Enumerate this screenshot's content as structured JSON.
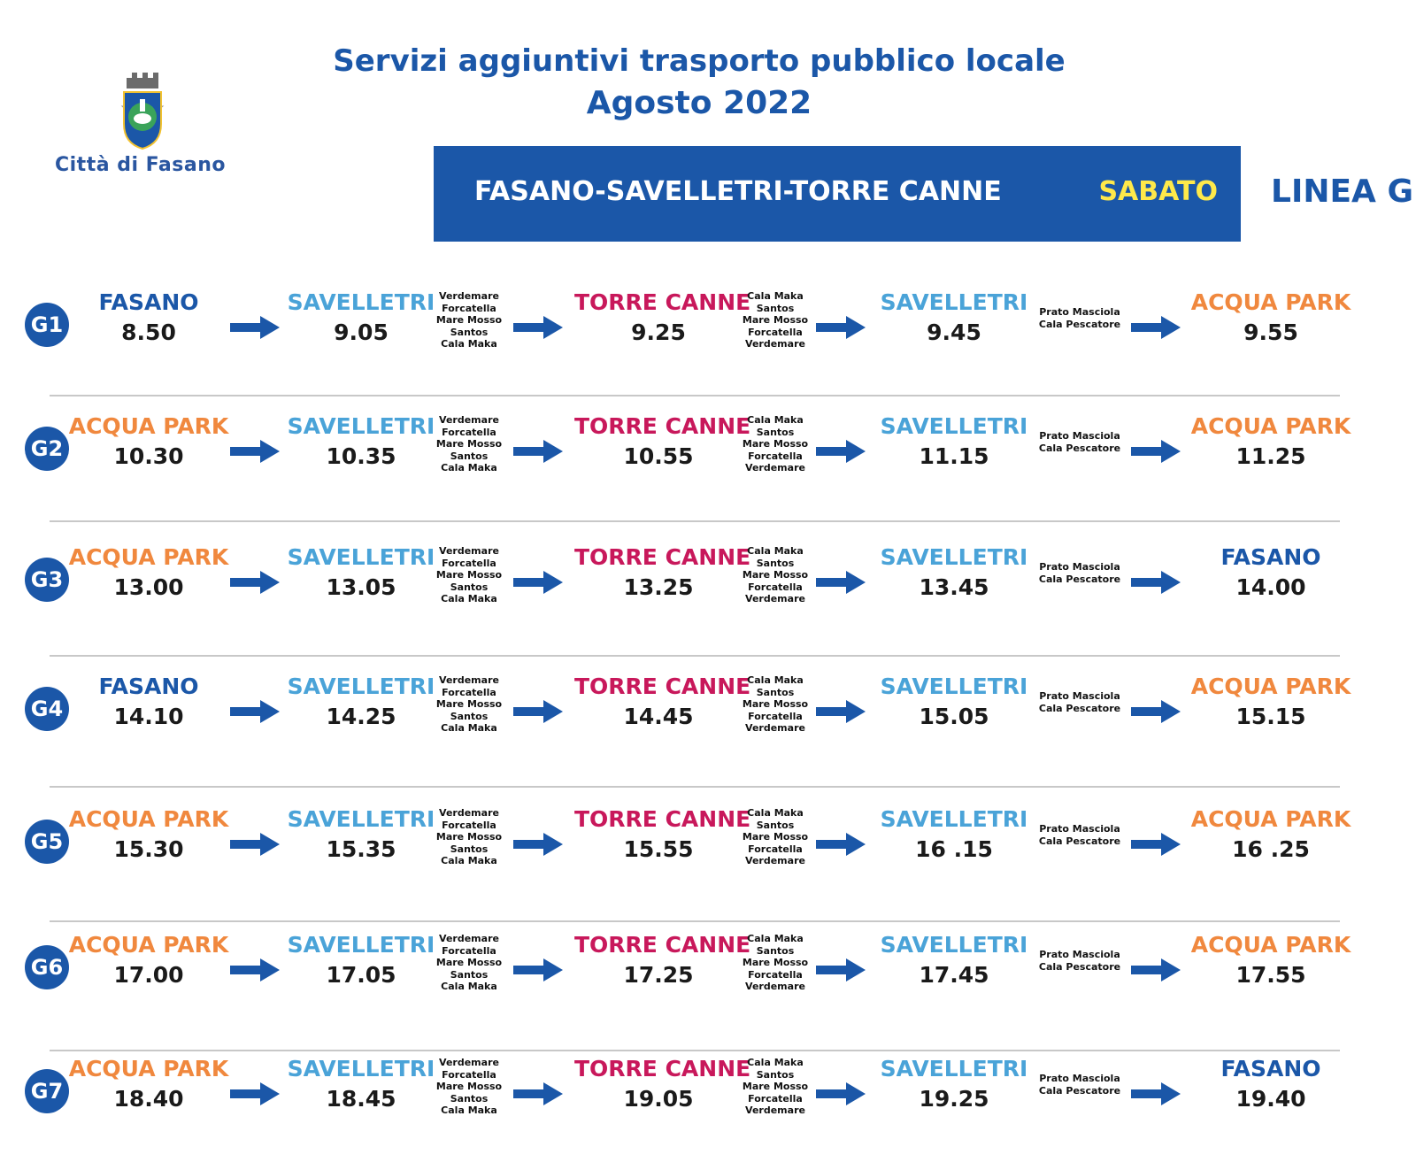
{
  "header": {
    "logo_text": "Città di Fasano",
    "title_line1": "Servizi aggiuntivi trasporto pubblico locale",
    "title_line2": "Agosto 2022",
    "banner_route": "FASANO-SAVELLETRI-TORRE CANNE",
    "banner_day": "SABATO",
    "line_label": "LINEA G"
  },
  "colors": {
    "primary_blue": "#1b57a8",
    "savelletri": "#4aa3d8",
    "torre_canne": "#c8185b",
    "acqua_park": "#f0883e",
    "day_yellow": "#ffe94a"
  },
  "trips": [
    {
      "code": "G1",
      "stops": [
        {
          "name": "FASANO",
          "time": "8.50",
          "type": "fasano"
        },
        {
          "name": "SAVELLETRI",
          "time": "9.05",
          "type": "savelletri"
        },
        {
          "name": "TORRE CANNE",
          "time": "9.25",
          "type": "torre"
        },
        {
          "name": "SAVELLETRI",
          "time": "9.45",
          "type": "savelletri"
        },
        {
          "name": "ACQUA PARK",
          "time": "9.55",
          "type": "acqua"
        }
      ],
      "via": [
        "Verdemare\nForcatella\nMare Mosso\nSantos\nCala Maka",
        "Cala Maka\nSantos\nMare Mosso\nForcatella\nVerdemare",
        "Prato Masciola\nCala Pescatore"
      ]
    },
    {
      "code": "G2",
      "stops": [
        {
          "name": "ACQUA PARK",
          "time": "10.30",
          "type": "acqua"
        },
        {
          "name": "SAVELLETRI",
          "time": "10.35",
          "type": "savelletri"
        },
        {
          "name": "TORRE CANNE",
          "time": "10.55",
          "type": "torre"
        },
        {
          "name": "SAVELLETRI",
          "time": "11.15",
          "type": "savelletri"
        },
        {
          "name": "ACQUA PARK",
          "time": "11.25",
          "type": "acqua"
        }
      ],
      "via": [
        "Verdemare\nForcatella\nMare Mosso\nSantos\nCala Maka",
        "Cala Maka\nSantos\nMare Mosso\nForcatella\nVerdemare",
        "Prato Masciola\nCala Pescatore"
      ]
    },
    {
      "code": "G3",
      "stops": [
        {
          "name": "ACQUA PARK",
          "time": "13.00",
          "type": "acqua"
        },
        {
          "name": "SAVELLETRI",
          "time": "13.05",
          "type": "savelletri"
        },
        {
          "name": "TORRE CANNE",
          "time": "13.25",
          "type": "torre"
        },
        {
          "name": "SAVELLETRI",
          "time": "13.45",
          "type": "savelletri"
        },
        {
          "name": "FASANO",
          "time": "14.00",
          "type": "fasano"
        }
      ],
      "via": [
        "Verdemare\nForcatella\nMare Mosso\nSantos\nCala Maka",
        "Cala Maka\nSantos\nMare Mosso\nForcatella\nVerdemare",
        "Prato Masciola\nCala Pescatore"
      ]
    },
    {
      "code": "G4",
      "stops": [
        {
          "name": "FASANO",
          "time": "14.10",
          "type": "fasano"
        },
        {
          "name": "SAVELLETRI",
          "time": "14.25",
          "type": "savelletri"
        },
        {
          "name": "TORRE CANNE",
          "time": "14.45",
          "type": "torre"
        },
        {
          "name": "SAVELLETRI",
          "time": "15.05",
          "type": "savelletri"
        },
        {
          "name": "ACQUA PARK",
          "time": "15.15",
          "type": "acqua"
        }
      ],
      "via": [
        "Verdemare\nForcatella\nMare Mosso\nSantos\nCala Maka",
        "Cala Maka\nSantos\nMare Mosso\nForcatella\nVerdemare",
        "Prato Masciola\nCala Pescatore"
      ]
    },
    {
      "code": "G5",
      "stops": [
        {
          "name": "ACQUA PARK",
          "time": "15.30",
          "type": "acqua"
        },
        {
          "name": "SAVELLETRI",
          "time": "15.35",
          "type": "savelletri"
        },
        {
          "name": "TORRE CANNE",
          "time": "15.55",
          "type": "torre"
        },
        {
          "name": "SAVELLETRI",
          "time": "16 .15",
          "type": "savelletri"
        },
        {
          "name": "ACQUA PARK",
          "time": "16 .25",
          "type": "acqua"
        }
      ],
      "via": [
        "Verdemare\nForcatella\nMare Mosso\nSantos\nCala Maka",
        "Cala Maka\nSantos\nMare Mosso\nForcatella\nVerdemare",
        "Prato Masciola\nCala Pescatore"
      ]
    },
    {
      "code": "G6",
      "stops": [
        {
          "name": "ACQUA PARK",
          "time": "17.00",
          "type": "acqua"
        },
        {
          "name": "SAVELLETRI",
          "time": "17.05",
          "type": "savelletri"
        },
        {
          "name": "TORRE CANNE",
          "time": "17.25",
          "type": "torre"
        },
        {
          "name": "SAVELLETRI",
          "time": "17.45",
          "type": "savelletri"
        },
        {
          "name": "ACQUA PARK",
          "time": "17.55",
          "type": "acqua"
        }
      ],
      "via": [
        "Verdemare\nForcatella\nMare Mosso\nSantos\nCala Maka",
        "Cala Maka\nSantos\nMare Mosso\nForcatella\nVerdemare",
        "Prato Masciola\nCala Pescatore"
      ]
    },
    {
      "code": "G7",
      "stops": [
        {
          "name": "ACQUA PARK",
          "time": "18.40",
          "type": "acqua"
        },
        {
          "name": "SAVELLETRI",
          "time": "18.45",
          "type": "savelletri"
        },
        {
          "name": "TORRE CANNE",
          "time": "19.05",
          "type": "torre"
        },
        {
          "name": "SAVELLETRI",
          "time": "19.25",
          "type": "savelletri"
        },
        {
          "name": "FASANO",
          "time": "19.40",
          "type": "fasano"
        }
      ],
      "via": [
        "Verdemare\nForcatella\nMare Mosso\nSantos\nCala Maka",
        "Cala Maka\nSantos\nMare Mosso\nForcatella\nVerdemare",
        "Prato Masciola\nCala Pescatore"
      ]
    }
  ]
}
